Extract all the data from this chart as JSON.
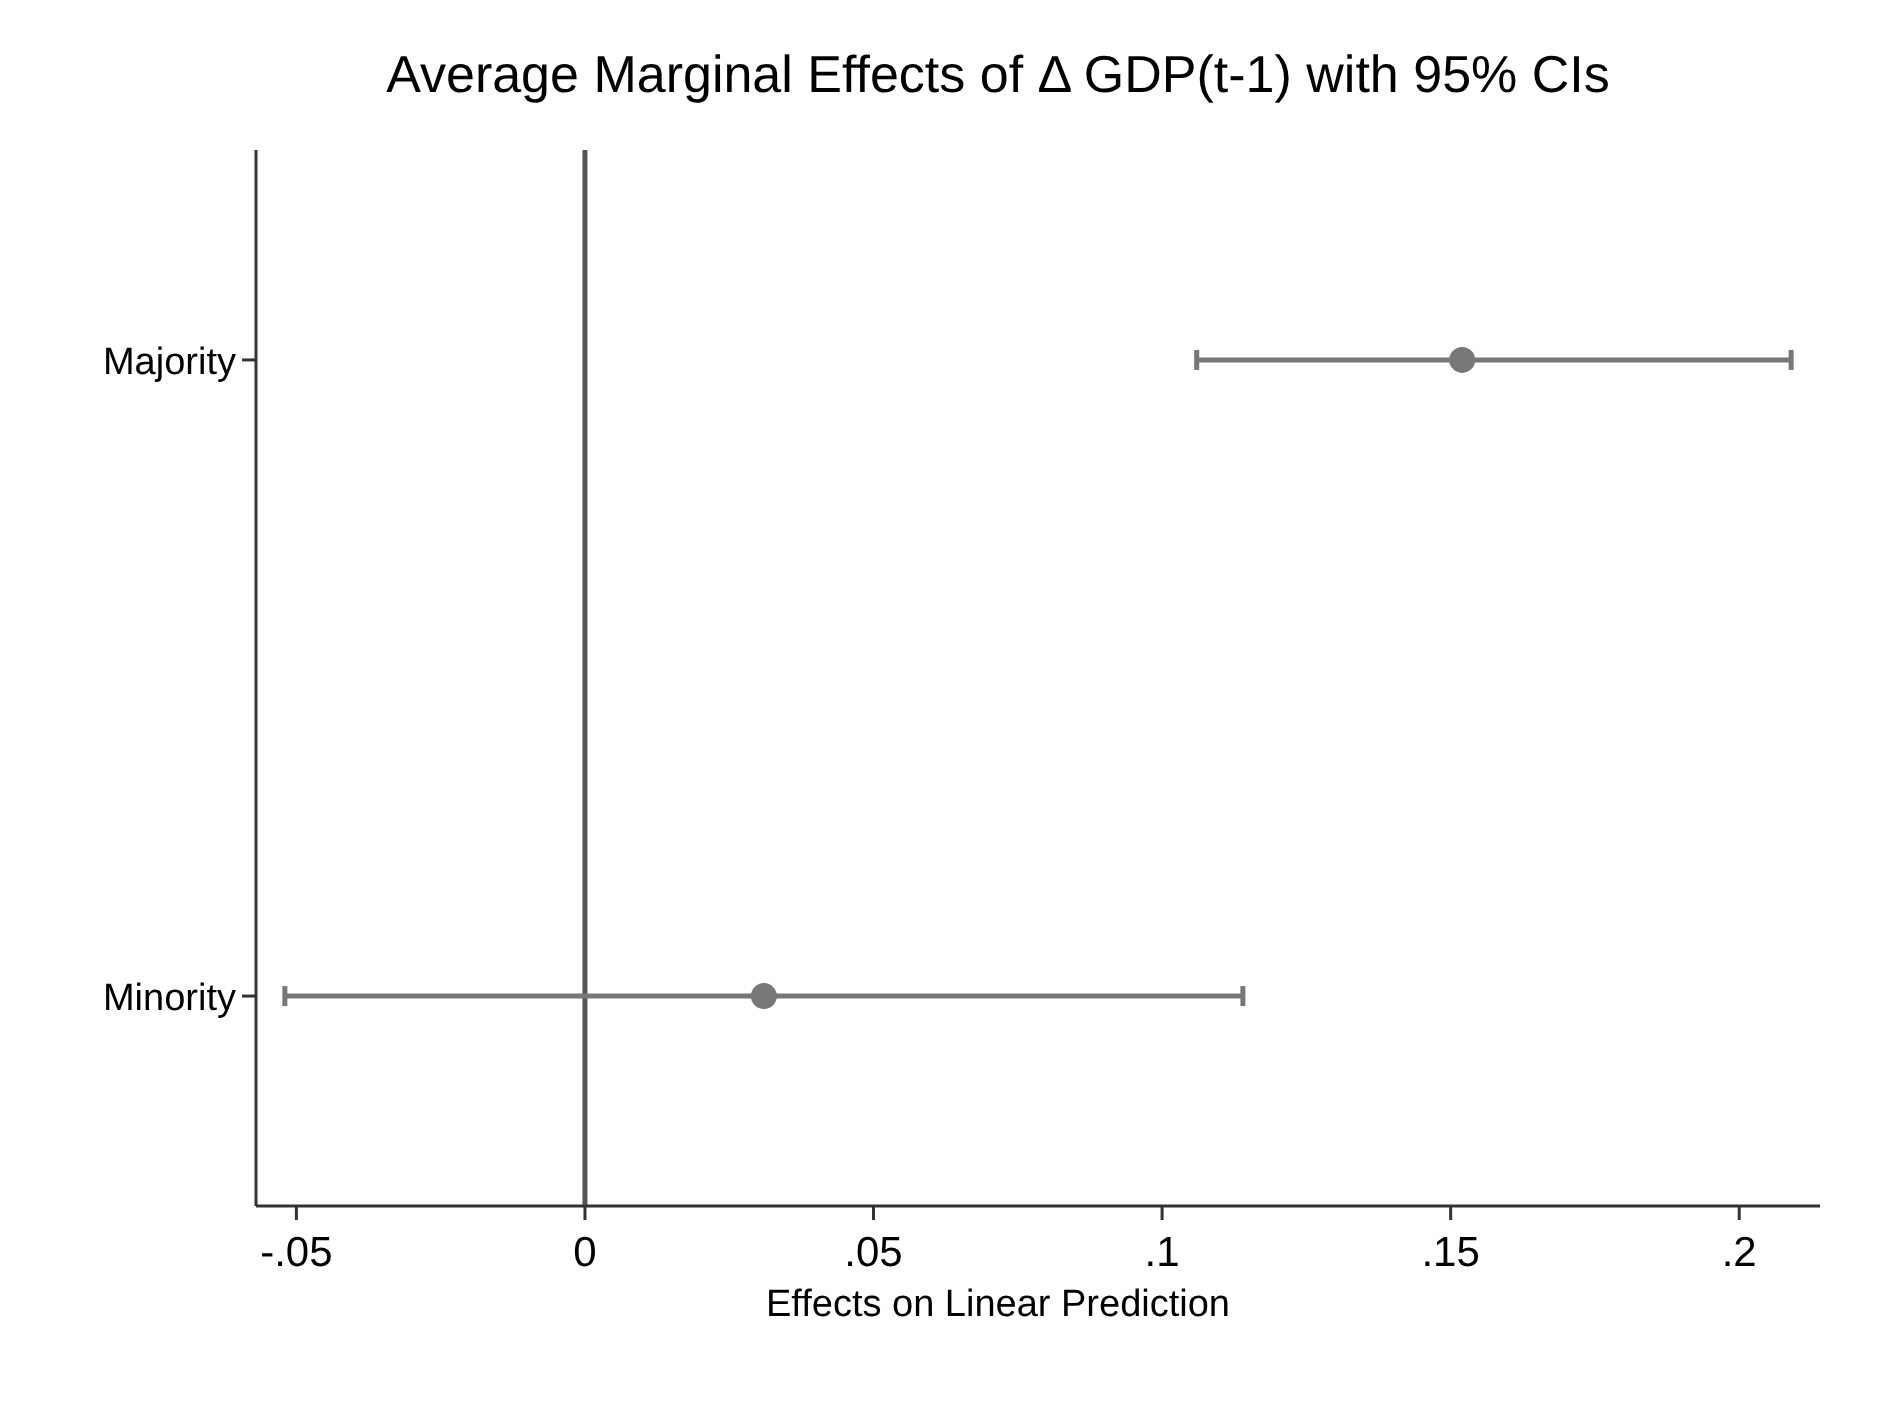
{
  "chart_data": {
    "type": "scatter",
    "orientation": "horizontal",
    "title": "Average Marginal Effects of Δ GDP(t-1) with 95% CIs",
    "xlabel": "Effects on Linear Prediction",
    "categories": [
      "Majority",
      "Minority"
    ],
    "series": [
      {
        "color": "#777777",
        "values": [
          0.152,
          0.031
        ],
        "errors": [
          [
            0.106,
            0.209
          ],
          [
            -0.052,
            0.114
          ]
        ]
      }
    ],
    "xlim": [
      -0.057,
      0.214
    ],
    "xticks": [
      {
        "value": -0.05,
        "label": "-.05"
      },
      {
        "value": 0,
        "label": "0"
      },
      {
        "value": 0.05,
        "label": ".05"
      },
      {
        "value": 0.1,
        "label": ".1"
      },
      {
        "value": 0.15,
        "label": ".15"
      },
      {
        "value": 0.2,
        "label": ".2"
      }
    ],
    "ref_lines": [
      {
        "axis": "x",
        "value": 0,
        "color": "#555555"
      }
    ],
    "marker": "circle",
    "grid": false
  }
}
